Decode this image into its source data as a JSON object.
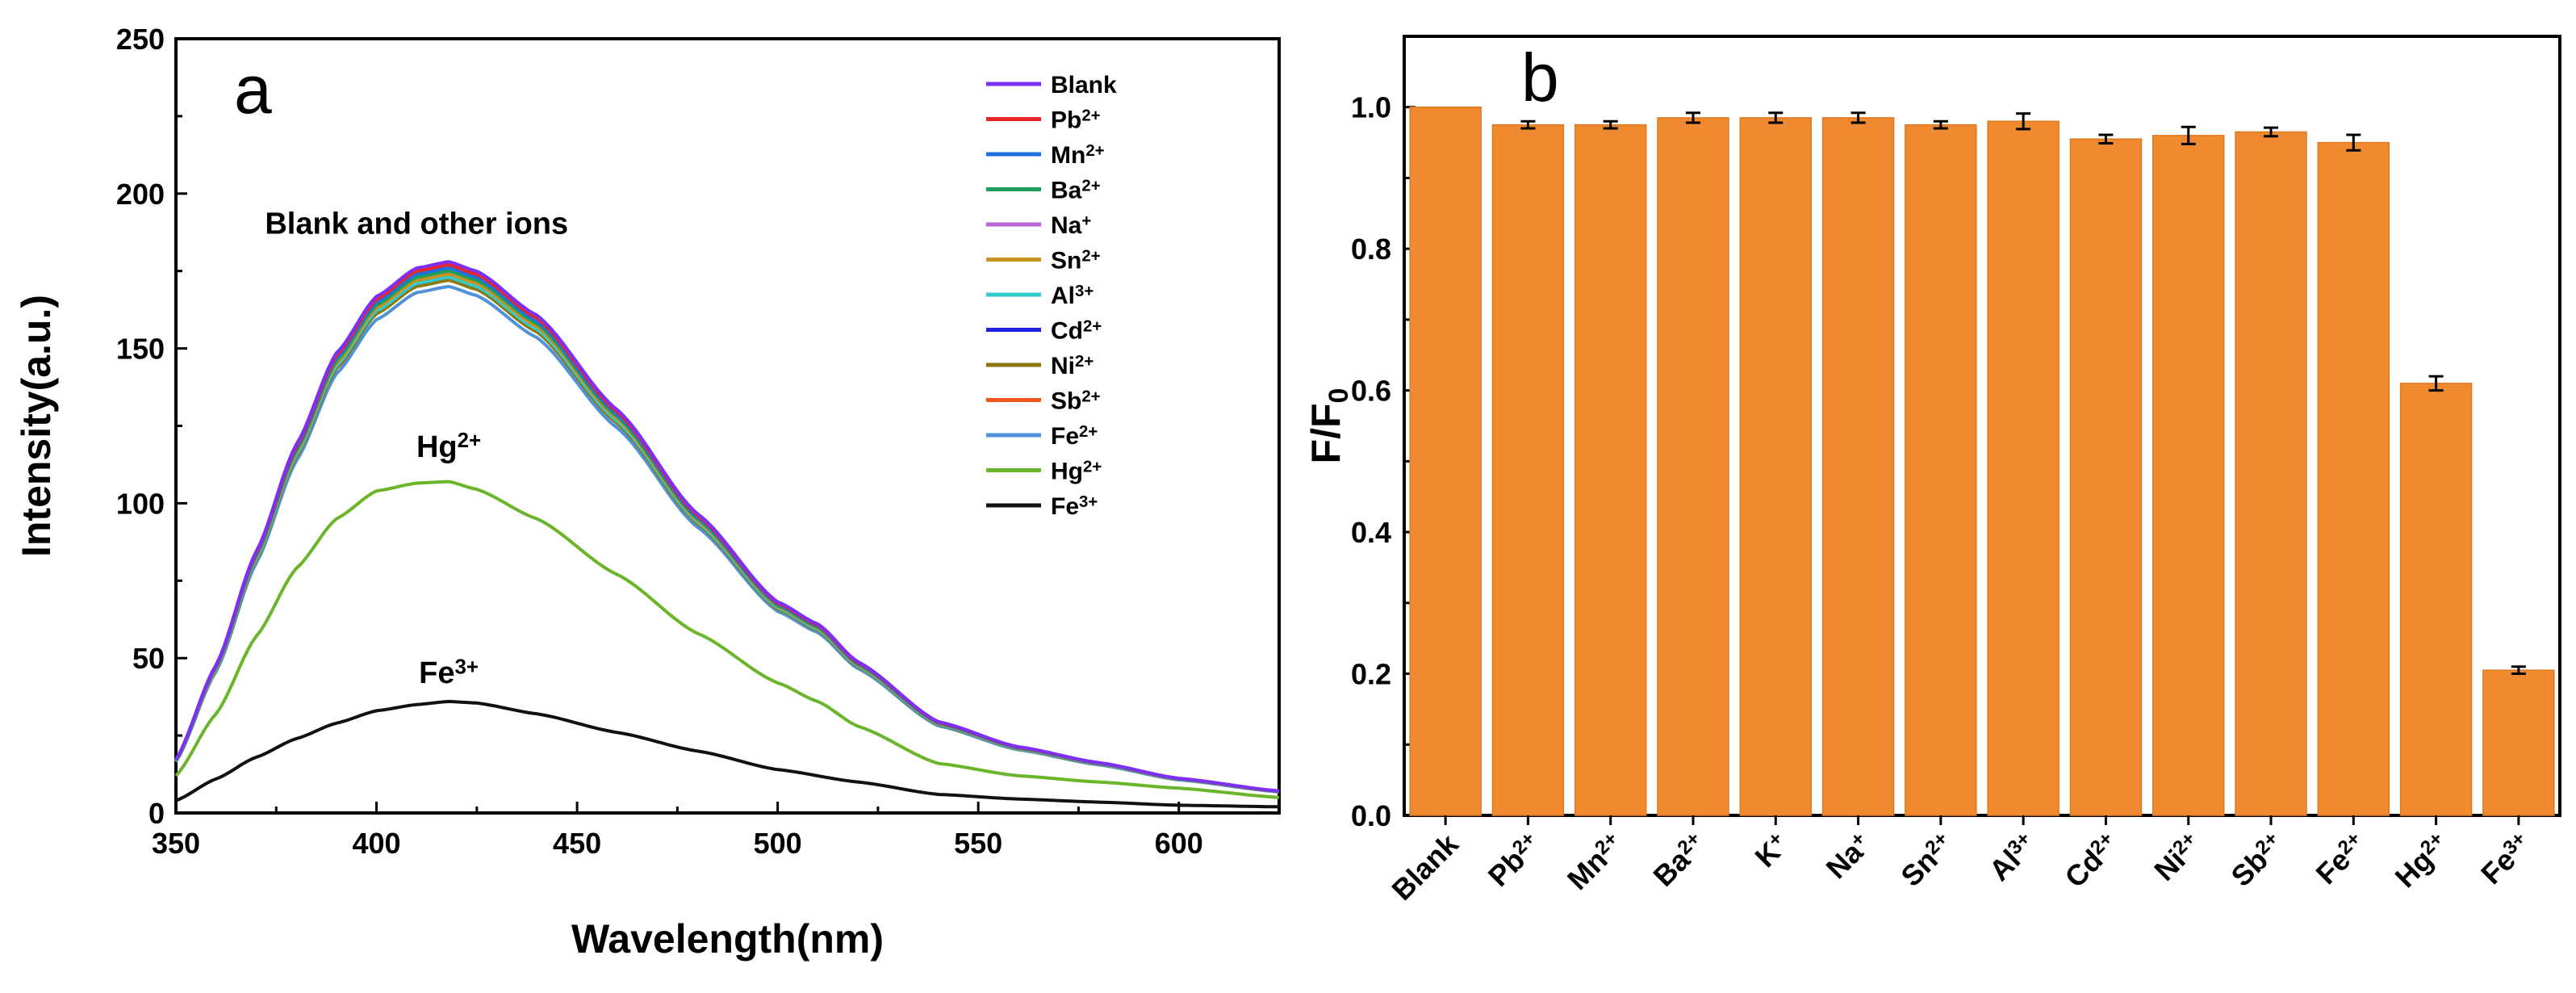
{
  "chart_data": [
    {
      "panel": "a",
      "type": "line",
      "xlabel": "Wavelength(nm)",
      "ylabel": "Intensity(a.u.)",
      "xlim": [
        350,
        625
      ],
      "ylim": [
        0,
        250
      ],
      "xticks": [
        350,
        400,
        450,
        500,
        550,
        600
      ],
      "yticks": [
        0,
        50,
        100,
        150,
        200,
        250
      ],
      "grid": false,
      "legend_placement": "top-right",
      "annotations": [
        {
          "text": "Blank and other ions",
          "x": 410,
          "y": 187
        },
        {
          "base": "Hg",
          "sup": "2+",
          "text": "Hg2+",
          "x": 418,
          "y": 115
        },
        {
          "base": "Fe",
          "sup": "3+",
          "text": "Fe3+",
          "x": 418,
          "y": 42
        }
      ],
      "series": [
        {
          "name": "Blank",
          "base": "Blank",
          "sup": "",
          "color": "#7B2FF7",
          "peak": 178,
          "profile": "main"
        },
        {
          "name": "Pb2+",
          "base": "Pb",
          "sup": "2+",
          "color": "#E8262A",
          "peak": 177,
          "profile": "main"
        },
        {
          "name": "Mn2+",
          "base": "Mn",
          "sup": "2+",
          "color": "#1F6FE0",
          "peak": 176,
          "profile": "main"
        },
        {
          "name": "Ba2+",
          "base": "Ba",
          "sup": "2+",
          "color": "#1E9E5A",
          "peak": 175,
          "profile": "main"
        },
        {
          "name": "Na+",
          "base": "Na",
          "sup": "+",
          "color": "#B565D6",
          "peak": 175,
          "profile": "main"
        },
        {
          "name": "Sn2+",
          "base": "Sn",
          "sup": "2+",
          "color": "#C8921E",
          "peak": 174,
          "profile": "main"
        },
        {
          "name": "Al3+",
          "base": "Al",
          "sup": "3+",
          "color": "#33CCCC",
          "peak": 173,
          "profile": "main"
        },
        {
          "name": "Cd2+",
          "base": "Cd",
          "sup": "2+",
          "color": "#1E23E0",
          "peak": 173,
          "profile": "main"
        },
        {
          "name": "Ni2+",
          "base": "Ni",
          "sup": "2+",
          "color": "#8A7A10",
          "peak": 172,
          "profile": "main"
        },
        {
          "name": "Sb2+",
          "base": "Sb",
          "sup": "2+",
          "color": "#F0561E",
          "peak": 174,
          "profile": "main"
        },
        {
          "name": "Fe2+",
          "base": "Fe",
          "sup": "2+",
          "color": "#4F92DA",
          "peak": 170,
          "profile": "main"
        },
        {
          "name": "Hg2+",
          "base": "Hg",
          "sup": "2+",
          "color": "#6BB52A",
          "peak": 107,
          "profile": "hg"
        },
        {
          "name": "Fe3+",
          "base": "Fe",
          "sup": "3+",
          "color": "#111111",
          "peak": 36,
          "profile": "fe"
        }
      ],
      "profiles": {
        "main": {
          "x": [
            350,
            360,
            370,
            380,
            390,
            400,
            410,
            418,
            425,
            440,
            460,
            480,
            500,
            510,
            520,
            540,
            560,
            580,
            600,
            625
          ],
          "y": [
            17,
            47,
            83,
            117,
            146,
            164,
            173,
            175,
            172,
            158,
            128,
            95,
            67,
            60,
            48,
            29,
            21,
            16,
            11,
            7
          ]
        },
        "hg": {
          "x": [
            350,
            360,
            370,
            380,
            390,
            400,
            410,
            418,
            425,
            440,
            460,
            480,
            500,
            510,
            520,
            540,
            560,
            580,
            600,
            625
          ],
          "y": [
            12,
            32,
            57,
            79,
            95,
            104,
            106.5,
            107,
            104.5,
            95,
            77,
            58,
            42,
            36,
            28,
            16,
            12,
            10,
            8,
            5
          ]
        },
        "fe": {
          "x": [
            350,
            360,
            370,
            380,
            390,
            400,
            410,
            418,
            425,
            440,
            460,
            480,
            500,
            520,
            540,
            560,
            580,
            600,
            625
          ],
          "y": [
            4,
            11,
            18,
            24,
            29,
            33,
            35,
            36,
            35.5,
            32,
            26,
            20,
            14,
            10,
            6,
            4.5,
            3.5,
            2.5,
            2
          ]
        }
      }
    },
    {
      "panel": "b",
      "type": "bar",
      "xlabel": "",
      "ylabel_base": "F/F",
      "ylabel_sub": "0",
      "ylabel": "F/F0",
      "ylim": [
        0,
        1.1
      ],
      "yticks": [
        "0.0",
        "0.2",
        "0.4",
        "0.6",
        "0.8",
        "1.0"
      ],
      "bar_color": "#F08A30",
      "grid": false,
      "categories": [
        {
          "base": "Blank",
          "sup": "",
          "label": "Blank"
        },
        {
          "base": "Pb",
          "sup": "2+",
          "label": "Pb2+"
        },
        {
          "base": "Mn",
          "sup": "2+",
          "label": "Mn2+"
        },
        {
          "base": "Ba",
          "sup": "2+",
          "label": "Ba2+"
        },
        {
          "base": "K",
          "sup": "+",
          "label": "K+"
        },
        {
          "base": "Na",
          "sup": "+",
          "label": "Na+"
        },
        {
          "base": "Sn",
          "sup": "2+",
          "label": "Sn2+"
        },
        {
          "base": "Al",
          "sup": "3+",
          "label": "Al3+"
        },
        {
          "base": "Cd",
          "sup": "2+",
          "label": "Cd2+"
        },
        {
          "base": "Ni",
          "sup": "2+",
          "label": "Ni2+"
        },
        {
          "base": "Sb",
          "sup": "2+",
          "label": "Sb2+"
        },
        {
          "base": "Fe",
          "sup": "2+",
          "label": "Fe2+"
        },
        {
          "base": "Hg",
          "sup": "2+",
          "label": "Hg2+"
        },
        {
          "base": "Fe",
          "sup": "3+",
          "label": "Fe3+"
        }
      ],
      "values": [
        1.0,
        0.975,
        0.975,
        0.985,
        0.985,
        0.985,
        0.975,
        0.98,
        0.955,
        0.96,
        0.965,
        0.95,
        0.61,
        0.205
      ],
      "errors": [
        0.0,
        0.005,
        0.005,
        0.007,
        0.007,
        0.007,
        0.005,
        0.011,
        0.006,
        0.012,
        0.006,
        0.011,
        0.01,
        0.005
      ]
    }
  ]
}
